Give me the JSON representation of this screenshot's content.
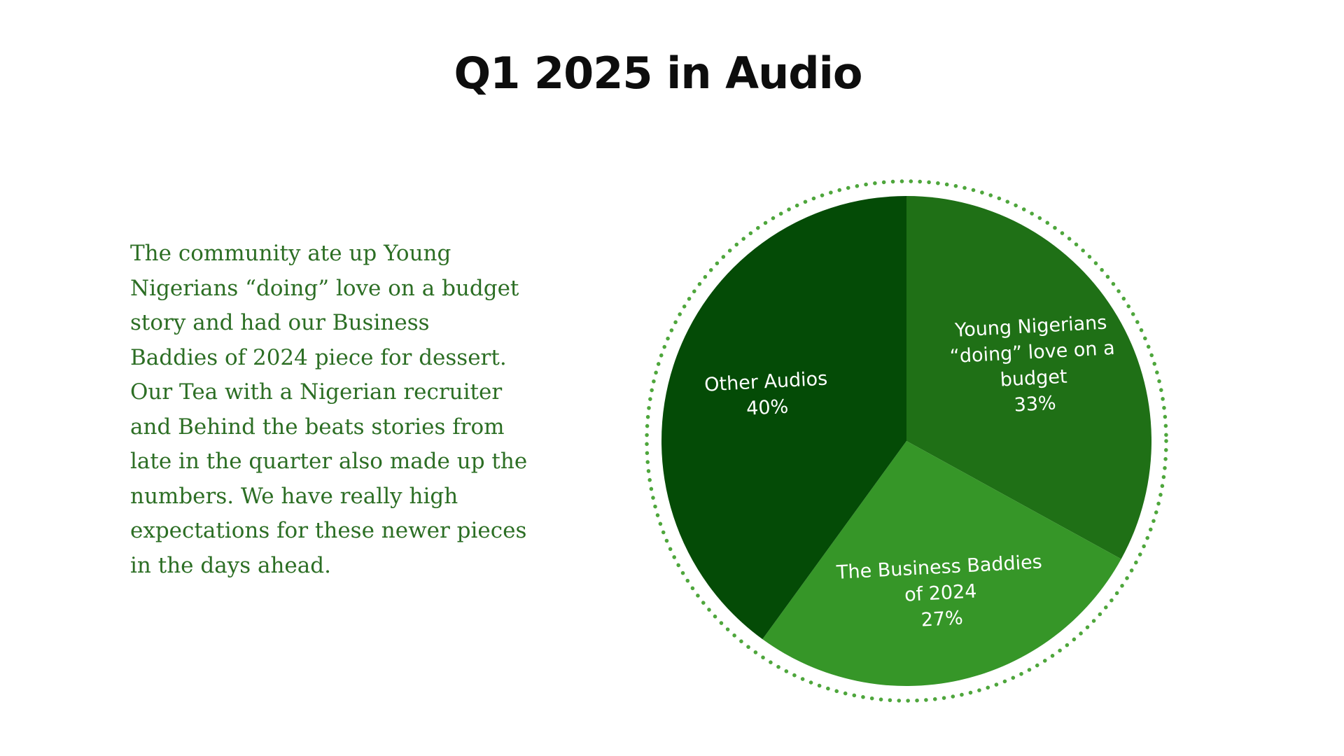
{
  "slide": {
    "title": "Q1 2025 in Audio",
    "body": "The community ate up Young\nNigerians “doing” love on  a budget\nstory and had our  Business\nBaddies of 2024 piece for dessert.\nOur Tea with a Nigerian recruiter\nand Behind the beats stories from\nlate in the quarter also made up the\nnumbers. We have really high\nexpectations for these newer pieces\nin the days ahead."
  },
  "colors": {
    "text_green": "#2c6e24",
    "dotted_ring": "#4ea63c"
  },
  "chart_data": {
    "type": "pie",
    "title": "",
    "start_angle_deg": 0,
    "direction": "clockwise",
    "slices": [
      {
        "label_lines": [
          "Young Nigerians",
          "“doing” love on a",
          "budget"
        ],
        "percent_label": "33%",
        "value": 33,
        "color": "#1f7016"
      },
      {
        "label_lines": [
          "The Business Baddies",
          "of 2024"
        ],
        "percent_label": "27%",
        "value": 27,
        "color": "#369628"
      },
      {
        "label_lines": [
          "Other Audios"
        ],
        "percent_label": "40%",
        "value": 40,
        "color": "#044b06"
      }
    ]
  }
}
